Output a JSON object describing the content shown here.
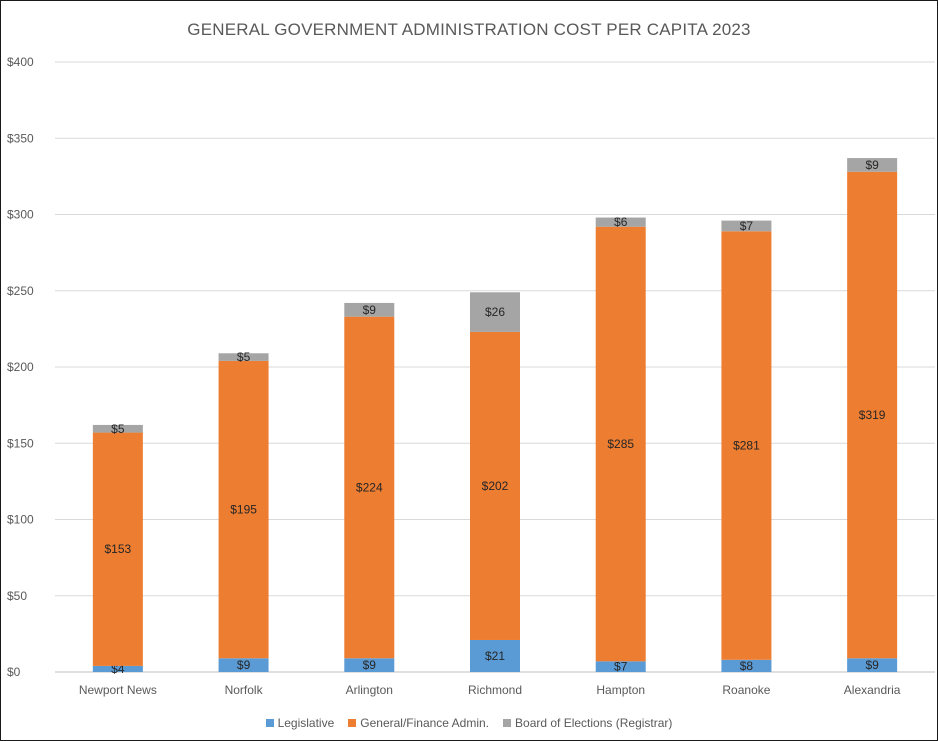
{
  "chart_data": {
    "type": "bar",
    "stacked": true,
    "title": "GENERAL GOVERNMENT ADMINISTRATION COST PER CAPITA 2023",
    "xlabel": "",
    "ylabel": "",
    "ylim": [
      0,
      400
    ],
    "yticks": [
      0,
      50,
      100,
      150,
      200,
      250,
      300,
      350,
      400
    ],
    "ytick_labels": [
      "$0",
      "$50",
      "$100",
      "$150",
      "$200",
      "$250",
      "$300",
      "$350",
      "$400"
    ],
    "grid": true,
    "legend": "bottom",
    "categories": [
      "Newport News",
      "Norfolk",
      "Arlington",
      "Richmond",
      "Hampton",
      "Roanoke",
      "Alexandria"
    ],
    "series": [
      {
        "name": "Legislative",
        "color": "#5b9bd5",
        "values": [
          4,
          9,
          9,
          21,
          7,
          8,
          9
        ],
        "labels": [
          "$4",
          "$9",
          "$9",
          "$21",
          "$7",
          "$8",
          "$9"
        ]
      },
      {
        "name": "General/Finance Admin.",
        "color": "#ed7d31",
        "values": [
          153,
          195,
          224,
          202,
          285,
          281,
          319
        ],
        "labels": [
          "$153",
          "$195",
          "$224",
          "$202",
          "$285",
          "$281",
          "$319"
        ]
      },
      {
        "name": "Board of Elections (Registrar)",
        "color": "#a5a5a5",
        "values": [
          5,
          5,
          9,
          26,
          6,
          7,
          9
        ],
        "labels": [
          "$5",
          "$5",
          "$9",
          "$26",
          "$6",
          "$7",
          "$9"
        ]
      }
    ]
  }
}
